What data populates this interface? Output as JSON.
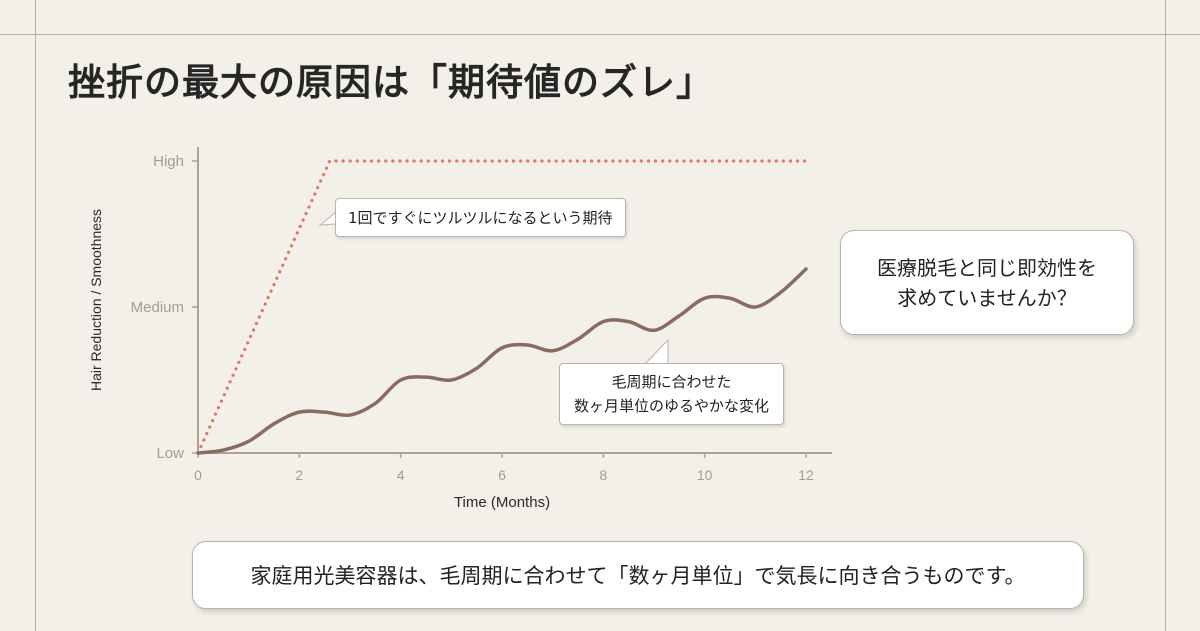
{
  "title": "挫折の最大の原因は「期待値のズレ」",
  "colors": {
    "background": "#f3efe9",
    "frame": "#c9a99a",
    "axis": "#b79d92",
    "ideal_line": "#e0766a",
    "real_line": "#8a6b62",
    "tick_text": "#a89a94"
  },
  "chart_data": {
    "type": "line",
    "xlabel": "Time (Months)",
    "ylabel": "Hair Reduction / Smoothness",
    "xlim": [
      0,
      12
    ],
    "ylim": [
      0,
      1
    ],
    "x_ticks": [
      0,
      2,
      4,
      6,
      8,
      10,
      12
    ],
    "y_ticks": [
      {
        "value": 0,
        "label": "Low"
      },
      {
        "value": 0.5,
        "label": "Medium"
      },
      {
        "value": 1,
        "label": "High"
      }
    ],
    "grid": false,
    "series": [
      {
        "key": "ideal",
        "style": "dotted",
        "x": [
          0,
          2.6,
          12
        ],
        "y": [
          0,
          1,
          1
        ]
      },
      {
        "key": "real",
        "style": "solid",
        "x": [
          0,
          0.5,
          1,
          1.5,
          2,
          2.5,
          3,
          3.5,
          4,
          4.5,
          5,
          5.5,
          6,
          6.5,
          7,
          7.5,
          8,
          8.5,
          9,
          9.5,
          10,
          10.5,
          11,
          11.5,
          12
        ],
        "y": [
          0,
          0.01,
          0.04,
          0.1,
          0.14,
          0.14,
          0.13,
          0.17,
          0.25,
          0.26,
          0.25,
          0.29,
          0.36,
          0.37,
          0.35,
          0.39,
          0.45,
          0.45,
          0.42,
          0.47,
          0.53,
          0.53,
          0.5,
          0.55,
          0.63
        ]
      }
    ]
  },
  "annotations": {
    "ideal": "1回ですぐにツルツルになるという期待",
    "real_line1": "毛周期に合わせた",
    "real_line2": "数ヶ月単位のゆるやかな変化"
  },
  "bubble": {
    "line1": "医療脱毛と同じ即効性を",
    "line2": "求めていませんか？"
  },
  "footer": "家庭用光美容器は、毛周期に合わせて「数ヶ月単位」で気長に向き合うものです。"
}
